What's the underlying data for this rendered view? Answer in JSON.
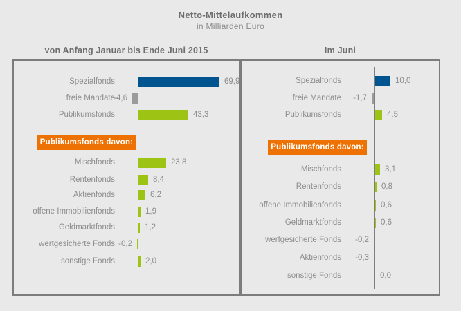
{
  "title": "Netto-Mittelaufkommen",
  "subtitle": "in Milliarden Euro",
  "colors": {
    "blue": "#005591",
    "green": "#9DC414",
    "gray": "#9B9B9B",
    "orange": "#EE7203",
    "background": "#E9E9E9",
    "border": "#7C7C7C",
    "axis": "#7F7F7F",
    "label_text": "#8C8C8C",
    "heading_text": "#6E6E6E",
    "badge_text": "#FFFFFF"
  },
  "chart_data": [
    {
      "type": "bar",
      "orientation": "horizontal",
      "title": "von Anfang Januar bis Ende Juni 2015",
      "unit": "Milliarden Euro",
      "badge_label": "Publikumsfonds davon:",
      "xlim": [
        -10,
        80
      ],
      "categories": [
        "Spezialfonds",
        "freie Mandate",
        "Publikumsfonds",
        "Mischfonds",
        "Rentenfonds",
        "Aktienfonds",
        "offene Immobilienfonds",
        "Geldmarktfonds",
        "wertgesicherte Fonds",
        "sonstige Fonds"
      ],
      "values": [
        69.9,
        -4.6,
        43.3,
        23.8,
        8.4,
        6.2,
        1.9,
        1.2,
        -0.2,
        2.0
      ],
      "rows": [
        {
          "label": "Spezialfonds",
          "value": 69.9,
          "display": "69,9",
          "color": "blue",
          "group": "top"
        },
        {
          "label": "freie Mandate",
          "value": -4.6,
          "display": "-4,6",
          "color": "gray",
          "group": "top"
        },
        {
          "label": "Publikumsfonds",
          "value": 43.3,
          "display": "43,3",
          "color": "green",
          "group": "top"
        },
        {
          "label": "Mischfonds",
          "value": 23.8,
          "display": "23,8",
          "color": "green",
          "group": "breakdown"
        },
        {
          "label": "Rentenfonds",
          "value": 8.4,
          "display": "8,4",
          "color": "green",
          "group": "breakdown"
        },
        {
          "label": "Aktienfonds",
          "value": 6.2,
          "display": "6,2",
          "color": "green",
          "group": "breakdown"
        },
        {
          "label": "offene Immobilienfonds",
          "value": 1.9,
          "display": "1,9",
          "color": "green",
          "group": "breakdown"
        },
        {
          "label": "Geldmarktfonds",
          "value": 1.2,
          "display": "1,2",
          "color": "green",
          "group": "breakdown"
        },
        {
          "label": "wertgesicherte Fonds",
          "value": -0.2,
          "display": "-0,2",
          "color": "green",
          "group": "breakdown"
        },
        {
          "label": "sonstige Fonds",
          "value": 2.0,
          "display": "2,0",
          "color": "green",
          "group": "breakdown"
        }
      ]
    },
    {
      "type": "bar",
      "orientation": "horizontal",
      "title": "Im Juni",
      "unit": "Milliarden Euro",
      "badge_label": "Publikumsfonds davon:",
      "xlim": [
        -5,
        12
      ],
      "categories": [
        "Spezialfonds",
        "freie Mandate",
        "Publikumsfonds",
        "Mischfonds",
        "Rentenfonds",
        "offene Immobilienfonds",
        "Geldmarktfonds",
        "wertgesicherte Fonds",
        "Aktienfonds",
        "sonstige Fonds"
      ],
      "values": [
        10.0,
        -1.7,
        4.5,
        3.1,
        0.8,
        0.6,
        0.6,
        -0.2,
        -0.3,
        0.0
      ],
      "rows": [
        {
          "label": "Spezialfonds",
          "value": 10.0,
          "display": "10,0",
          "color": "blue",
          "group": "top"
        },
        {
          "label": "freie Mandate",
          "value": -1.7,
          "display": "-1,7",
          "color": "gray",
          "group": "top"
        },
        {
          "label": "Publikumsfonds",
          "value": 4.5,
          "display": "4,5",
          "color": "green",
          "group": "top"
        },
        {
          "label": "Mischfonds",
          "value": 3.1,
          "display": "3,1",
          "color": "green",
          "group": "breakdown"
        },
        {
          "label": "Rentenfonds",
          "value": 0.8,
          "display": "0,8",
          "color": "green",
          "group": "breakdown"
        },
        {
          "label": "offene Immobilienfonds",
          "value": 0.6,
          "display": "0,6",
          "color": "green",
          "group": "breakdown"
        },
        {
          "label": "Geldmarktfonds",
          "value": 0.6,
          "display": "0,6",
          "color": "green",
          "group": "breakdown"
        },
        {
          "label": "wertgesicherte Fonds",
          "value": -0.2,
          "display": "-0,2",
          "color": "green",
          "group": "breakdown"
        },
        {
          "label": "Aktienfonds",
          "value": -0.3,
          "display": "-0,3",
          "color": "green",
          "group": "breakdown"
        },
        {
          "label": "sonstige Fonds",
          "value": 0.0,
          "display": "0,0",
          "color": "green",
          "group": "breakdown"
        }
      ]
    }
  ]
}
